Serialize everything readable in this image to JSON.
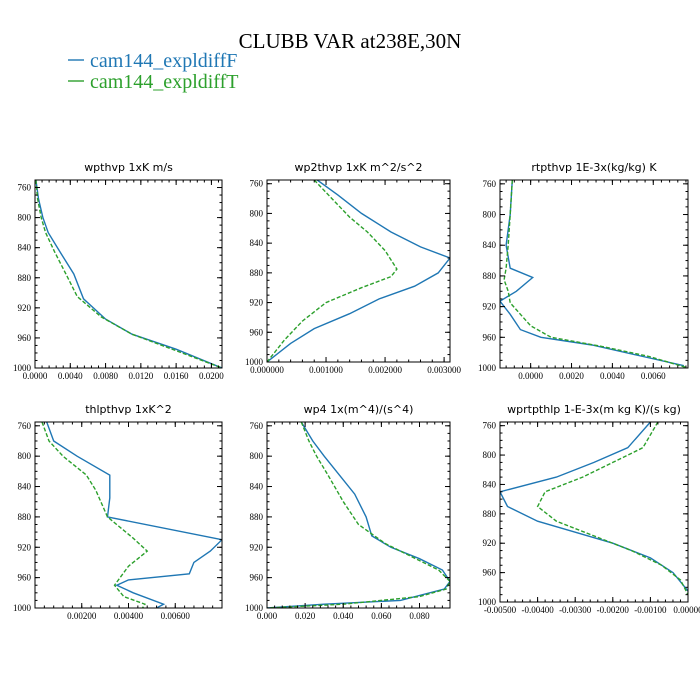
{
  "title": "CLUBB VAR at238E,30N",
  "colors": {
    "F": "#1f77b4",
    "T": "#2ca02c"
  },
  "legend": [
    {
      "label": "cam144_expldiffF",
      "color": "#1f77b4"
    },
    {
      "label": "cam144_expldiffT",
      "color": "#2ca02c"
    }
  ],
  "chart_data": [
    {
      "type": "line",
      "title": "wpthvp  1xK m/s",
      "xlim": [
        0,
        0.0212
      ],
      "ylim": [
        750,
        1000
      ],
      "xticks": [
        0,
        0.004,
        0.008,
        0.012,
        0.016,
        0.02
      ],
      "xtick_labels": [
        "0.0000",
        "0.0040",
        "0.0080",
        "0.0120",
        "0.0160",
        "0.0200"
      ],
      "yticks": [
        760,
        800,
        840,
        880,
        920,
        960,
        1000
      ],
      "series": [
        {
          "name": "cam144_expldiffF",
          "x": [
            0.0001,
            0.0004,
            0.0009,
            0.0015,
            0.0028,
            0.0044,
            0.0055,
            0.008,
            0.011,
            0.016,
            0.0212
          ],
          "y": [
            750,
            775,
            800,
            820,
            845,
            875,
            908,
            935,
            955,
            975,
            1000
          ]
        },
        {
          "name": "cam144_expldiffT",
          "x": [
            0.0001,
            0.0003,
            0.0007,
            0.0012,
            0.0022,
            0.0035,
            0.0048,
            0.0075,
            0.011,
            0.016,
            0.0212
          ],
          "y": [
            750,
            775,
            800,
            820,
            845,
            875,
            905,
            932,
            955,
            977,
            1000
          ]
        }
      ]
    },
    {
      "type": "line",
      "title": "wp2thvp  1xK m^2/s^2",
      "xlim": [
        0,
        0.0031
      ],
      "ylim": [
        755,
        1000
      ],
      "xticks": [
        0,
        0.001,
        0.002,
        0.003
      ],
      "xtick_labels": [
        "0.000000",
        "0.001000",
        "0.002000",
        "0.003000"
      ],
      "yticks": [
        760,
        800,
        840,
        880,
        920,
        960,
        1000
      ],
      "series": [
        {
          "name": "cam144_expldiffF",
          "x": [
            0.00085,
            0.0012,
            0.0016,
            0.0021,
            0.0026,
            0.0031,
            0.0029,
            0.0025,
            0.0019,
            0.0014,
            0.0008,
            0.0004,
            0.0
          ],
          "y": [
            755,
            775,
            800,
            825,
            845,
            860,
            880,
            898,
            915,
            935,
            955,
            975,
            1000
          ]
        },
        {
          "name": "cam144_expldiffT",
          "x": [
            0.0008,
            0.0011,
            0.0014,
            0.0017,
            0.002,
            0.0022,
            0.0021,
            0.0016,
            0.001,
            0.0006,
            0.0003,
            0.0
          ],
          "y": [
            755,
            780,
            805,
            825,
            850,
            875,
            885,
            900,
            920,
            945,
            970,
            1000
          ]
        }
      ]
    },
    {
      "type": "line",
      "title": "rtpthvp  1E-3x(kg/kg) K",
      "xlim": [
        -0.0015,
        0.0077
      ],
      "ylim": [
        755,
        1000
      ],
      "xticks": [
        0,
        0.002,
        0.004,
        0.006
      ],
      "xtick_labels": [
        "0.0000",
        "0.0020",
        "0.0040",
        "0.0060"
      ],
      "yticks": [
        760,
        800,
        840,
        880,
        920,
        960,
        1000
      ],
      "series": [
        {
          "name": "cam144_expldiffF",
          "x": [
            -0.0009,
            -0.001,
            -0.0012,
            -0.001,
            0.0001,
            -0.0007,
            -0.0015,
            -0.001,
            -0.0005,
            0.0005,
            0.003,
            0.0055,
            0.0075
          ],
          "y": [
            755,
            800,
            840,
            870,
            882,
            900,
            913,
            930,
            950,
            960,
            970,
            985,
            997
          ]
        },
        {
          "name": "cam144_expldiffT",
          "x": [
            -0.0009,
            -0.001,
            -0.0011,
            -0.0012,
            -0.0013,
            -0.0011,
            -0.001,
            -0.0005,
            0.0,
            0.001,
            0.0035,
            0.0058,
            0.0077
          ],
          "y": [
            755,
            800,
            840,
            870,
            885,
            900,
            915,
            930,
            945,
            960,
            972,
            985,
            1000
          ]
        }
      ]
    },
    {
      "type": "line",
      "title": "thlpthvp  1xK^2",
      "xlim": [
        0,
        0.008
      ],
      "ylim": [
        755,
        1000
      ],
      "xticks": [
        0.002,
        0.004,
        0.006
      ],
      "xtick_labels": [
        "0.00200",
        "0.00400",
        "0.00600"
      ],
      "yticks": [
        760,
        800,
        840,
        880,
        920,
        960,
        1000
      ],
      "series": [
        {
          "name": "cam144_expldiffF",
          "x": [
            0.0005,
            0.0008,
            0.0018,
            0.0032,
            0.0032,
            0.0031,
            0.008,
            0.0075,
            0.0068,
            0.0066,
            0.004,
            0.0035,
            0.0042,
            0.0055,
            0.0052
          ],
          "y": [
            755,
            780,
            800,
            825,
            855,
            880,
            910,
            925,
            940,
            955,
            963,
            970,
            980,
            995,
            1000
          ]
        },
        {
          "name": "cam144_expldiffT",
          "x": [
            0.0003,
            0.0006,
            0.0012,
            0.0022,
            0.0026,
            0.0031,
            0.0042,
            0.0048,
            0.0044,
            0.004,
            0.0034,
            0.0038,
            0.0047,
            0.0046
          ],
          "y": [
            755,
            780,
            800,
            825,
            845,
            880,
            908,
            925,
            935,
            945,
            970,
            985,
            995,
            1000
          ]
        }
      ]
    },
    {
      "type": "line",
      "title": "wp4  1x(m^4)/(s^4)",
      "xlim": [
        0,
        0.096
      ],
      "ylim": [
        755,
        1000
      ],
      "xticks": [
        0,
        0.02,
        0.04,
        0.06,
        0.08
      ],
      "xtick_labels": [
        "0.000",
        "0.020",
        "0.040",
        "0.060",
        "0.080"
      ],
      "yticks": [
        760,
        800,
        840,
        880,
        920,
        960,
        1000
      ],
      "series": [
        {
          "name": "cam144_expldiffF",
          "x": [
            0.018,
            0.024,
            0.03,
            0.038,
            0.046,
            0.052,
            0.055,
            0.065,
            0.08,
            0.092,
            0.096,
            0.093,
            0.07,
            0.03,
            0.0
          ],
          "y": [
            755,
            780,
            800,
            825,
            850,
            880,
            905,
            920,
            935,
            950,
            965,
            975,
            990,
            995,
            1000
          ]
        },
        {
          "name": "cam144_expldiffT",
          "x": [
            0.018,
            0.022,
            0.026,
            0.032,
            0.04,
            0.048,
            0.062,
            0.078,
            0.09,
            0.096,
            0.094,
            0.08,
            0.04,
            0.0
          ],
          "y": [
            755,
            780,
            800,
            825,
            860,
            890,
            915,
            935,
            950,
            965,
            975,
            985,
            995,
            1000
          ]
        }
      ]
    },
    {
      "type": "line",
      "title": "wprtpthlp  1-E-3x(m kg K)/(s kg)",
      "xlim": [
        -0.005,
        0.0
      ],
      "ylim": [
        755,
        1000
      ],
      "xticks": [
        -0.005,
        -0.004,
        -0.003,
        -0.002,
        -0.001,
        0
      ],
      "xtick_labels": [
        "-0.00500",
        "-0.00400",
        "-0.00300",
        "-0.00200",
        "-0.00100",
        "0.00000"
      ],
      "yticks": [
        760,
        800,
        840,
        880,
        920,
        960,
        1000
      ],
      "series": [
        {
          "name": "cam144_expldiffF",
          "x": [
            -0.001,
            -0.0016,
            -0.0025,
            -0.0035,
            -0.005,
            -0.0048,
            -0.004,
            -0.003,
            -0.002,
            -0.001,
            -0.0004,
            0.0
          ],
          "y": [
            755,
            790,
            810,
            830,
            850,
            870,
            890,
            905,
            920,
            940,
            960,
            985
          ]
        },
        {
          "name": "cam144_expldiffT",
          "x": [
            -0.0008,
            -0.0012,
            -0.002,
            -0.0028,
            -0.0038,
            -0.004,
            -0.0035,
            -0.0025,
            -0.0015,
            -0.0007,
            -0.0002,
            0.0
          ],
          "y": [
            755,
            790,
            810,
            830,
            850,
            870,
            890,
            910,
            930,
            950,
            970,
            990
          ]
        }
      ]
    }
  ]
}
